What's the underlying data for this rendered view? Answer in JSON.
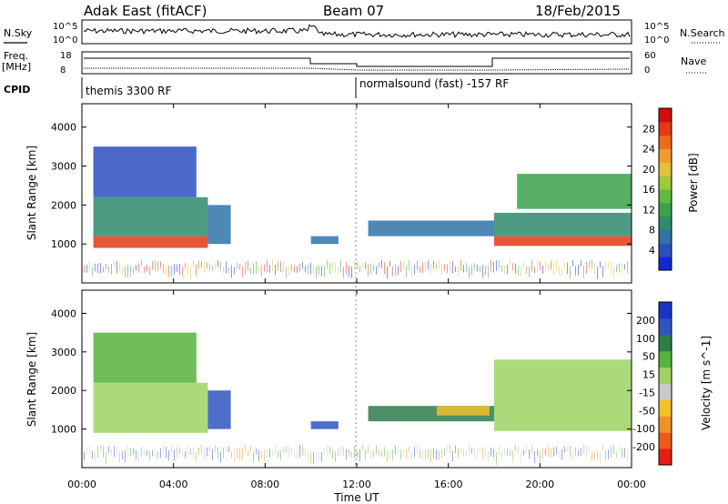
{
  "header": {
    "title": "Adak East (fitACF)",
    "beam": "Beam 07",
    "date": "18/Feb/2015"
  },
  "panels": {
    "sky": {
      "left_label": "N.Sky",
      "right_label": "N.Search",
      "tick_top": "10^5",
      "tick_bottom": "10^0"
    },
    "freq": {
      "left_label_1": "Freq.",
      "left_label_2": "[MHz]",
      "right_label": "Nave",
      "left_ticks": [
        "18",
        "8"
      ],
      "right_ticks": [
        "60",
        "0"
      ]
    },
    "cpid": {
      "label": "CPID",
      "mode_1": "themis 3300 RF",
      "mode_2": "normalsound (fast) -157 RF"
    }
  },
  "chart_data": [
    {
      "type": "heatmap",
      "name": "power",
      "ylabel": "Slant Range [km]",
      "yticks": [
        1000,
        2000,
        3000,
        4000
      ],
      "ylim": [
        0,
        4600
      ],
      "colorbar": {
        "label": "Power [dB]",
        "ticks": [
          4,
          8,
          12,
          16,
          20,
          24,
          28
        ],
        "range": [
          0,
          32
        ],
        "colors": [
          "#1428d2",
          "#2b4fbd",
          "#2f73a8",
          "#2f8a6e",
          "#3aa24a",
          "#62b93d",
          "#a3c83a",
          "#e3c23a",
          "#f29a2e",
          "#ec6a1d",
          "#e23a14",
          "#d10d0d"
        ]
      },
      "echo_regions": [
        {
          "t0": 0.5,
          "t1": 5.5,
          "r0": 900,
          "r1": 1200,
          "value": 28
        },
        {
          "t0": 0.5,
          "t1": 5.5,
          "r0": 1200,
          "r1": 2200,
          "value": 10
        },
        {
          "t0": 0.5,
          "t1": 5.0,
          "r0": 2200,
          "r1": 3500,
          "value": 5
        },
        {
          "t0": 5.5,
          "t1": 6.5,
          "r0": 1000,
          "r1": 2000,
          "value": 6
        },
        {
          "t0": 10.0,
          "t1": 11.2,
          "r0": 1000,
          "r1": 1200,
          "value": 7
        },
        {
          "t0": 12.5,
          "t1": 18.0,
          "r0": 1200,
          "r1": 1600,
          "value": 6
        },
        {
          "t0": 18.0,
          "t1": 24.0,
          "r0": 950,
          "r1": 1200,
          "value": 27
        },
        {
          "t0": 18.0,
          "t1": 24.0,
          "r0": 1200,
          "r1": 1800,
          "value": 10
        },
        {
          "t0": 19.0,
          "t1": 24.0,
          "r0": 1900,
          "r1": 2800,
          "value": 12
        }
      ]
    },
    {
      "type": "heatmap",
      "name": "velocity",
      "ylabel": "Slant Range [km]",
      "yticks": [
        1000,
        2000,
        3000,
        4000
      ],
      "ylim": [
        0,
        4600
      ],
      "xlabel": "Time UT",
      "xticks": [
        "00:00",
        "04:00",
        "08:00",
        "12:00",
        "16:00",
        "20:00",
        "00:00"
      ],
      "colorbar": {
        "label": "Velocity [m s^-1]",
        "ticks": [
          200,
          100,
          50,
          15,
          -15,
          -50,
          -100,
          -200
        ],
        "colors": [
          "#1c34c4",
          "#2f55c0",
          "#2f7d4a",
          "#58b33c",
          "#9ed363",
          "#c8c8c8",
          "#f5c02a",
          "#f2902a",
          "#ec5a1a",
          "#e41e10"
        ]
      },
      "echo_regions": [
        {
          "t0": 0.5,
          "t1": 5.5,
          "r0": 900,
          "r1": 2200,
          "value": 0
        },
        {
          "t0": 0.5,
          "t1": 5.0,
          "r0": 2200,
          "r1": 3500,
          "value": 20
        },
        {
          "t0": 5.5,
          "t1": 6.5,
          "r0": 1000,
          "r1": 2000,
          "value": 150
        },
        {
          "t0": 10.0,
          "t1": 11.2,
          "r0": 1000,
          "r1": 1200,
          "value": 120
        },
        {
          "t0": 12.5,
          "t1": 18.0,
          "r0": 1200,
          "r1": 1600,
          "value": 60
        },
        {
          "t0": 15.5,
          "t1": 17.8,
          "r0": 1350,
          "r1": 1600,
          "value": -80
        },
        {
          "t0": 18.0,
          "t1": 24.0,
          "r0": 950,
          "r1": 2800,
          "value": 0
        }
      ]
    }
  ]
}
